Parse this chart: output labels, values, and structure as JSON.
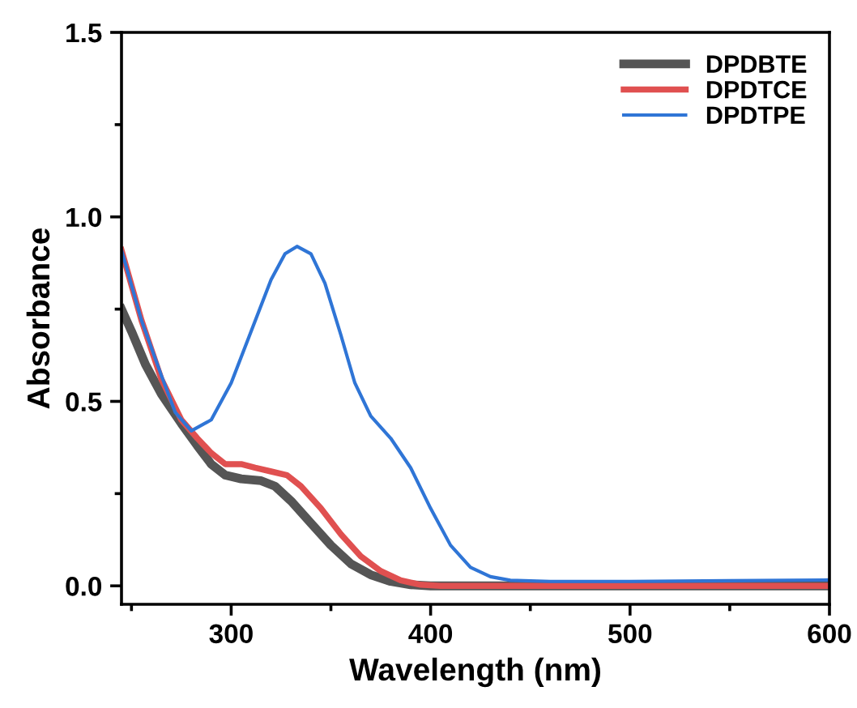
{
  "chart_data": {
    "type": "line",
    "xlabel": "Wavelength (nm)",
    "ylabel": "Absorbance",
    "xlim": [
      245,
      600
    ],
    "ylim": [
      -0.05,
      1.5
    ],
    "xticks": [
      300,
      400,
      500,
      600
    ],
    "yticks": [
      {
        "value": 0,
        "label": "0.0"
      },
      0.5,
      {
        "value": 1,
        "label": "1.0"
      },
      1.5
    ],
    "grid": false,
    "legend": "top right",
    "marker": "none",
    "line_style": "solid",
    "series": [
      {
        "name": "DPDBTE",
        "color": "#555555",
        "x": [
          245,
          250,
          257,
          265,
          275,
          283,
          290,
          297,
          305,
          315,
          322,
          330,
          340,
          350,
          360,
          370,
          380,
          390,
          400,
          500,
          600
        ],
        "values": [
          0.75,
          0.69,
          0.6,
          0.52,
          0.44,
          0.38,
          0.33,
          0.3,
          0.29,
          0.285,
          0.27,
          0.23,
          0.17,
          0.11,
          0.06,
          0.03,
          0.012,
          0.003,
          0,
          0,
          0
        ]
      },
      {
        "name": "DPDTCE",
        "color": "#e05050",
        "x": [
          245,
          255,
          265,
          275,
          283,
          290,
          297,
          305,
          312,
          320,
          328,
          335,
          345,
          355,
          365,
          375,
          385,
          395,
          405,
          500,
          600
        ],
        "values": [
          0.91,
          0.72,
          0.56,
          0.45,
          0.4,
          0.36,
          0.33,
          0.33,
          0.32,
          0.31,
          0.3,
          0.27,
          0.21,
          0.14,
          0.08,
          0.04,
          0.015,
          0.003,
          0,
          0,
          0
        ]
      },
      {
        "name": "DPDTPE",
        "color": "#2f75d6",
        "x": [
          245,
          255,
          265,
          272,
          280,
          290,
          300,
          310,
          320,
          327,
          333,
          340,
          347,
          355,
          362,
          370,
          380,
          390,
          400,
          410,
          420,
          430,
          440,
          460,
          500,
          550,
          600
        ],
        "values": [
          0.91,
          0.72,
          0.57,
          0.47,
          0.42,
          0.45,
          0.55,
          0.69,
          0.83,
          0.9,
          0.92,
          0.9,
          0.82,
          0.68,
          0.55,
          0.46,
          0.4,
          0.32,
          0.21,
          0.11,
          0.05,
          0.025,
          0.015,
          0.012,
          0.012,
          0.014,
          0.016
        ]
      }
    ]
  }
}
